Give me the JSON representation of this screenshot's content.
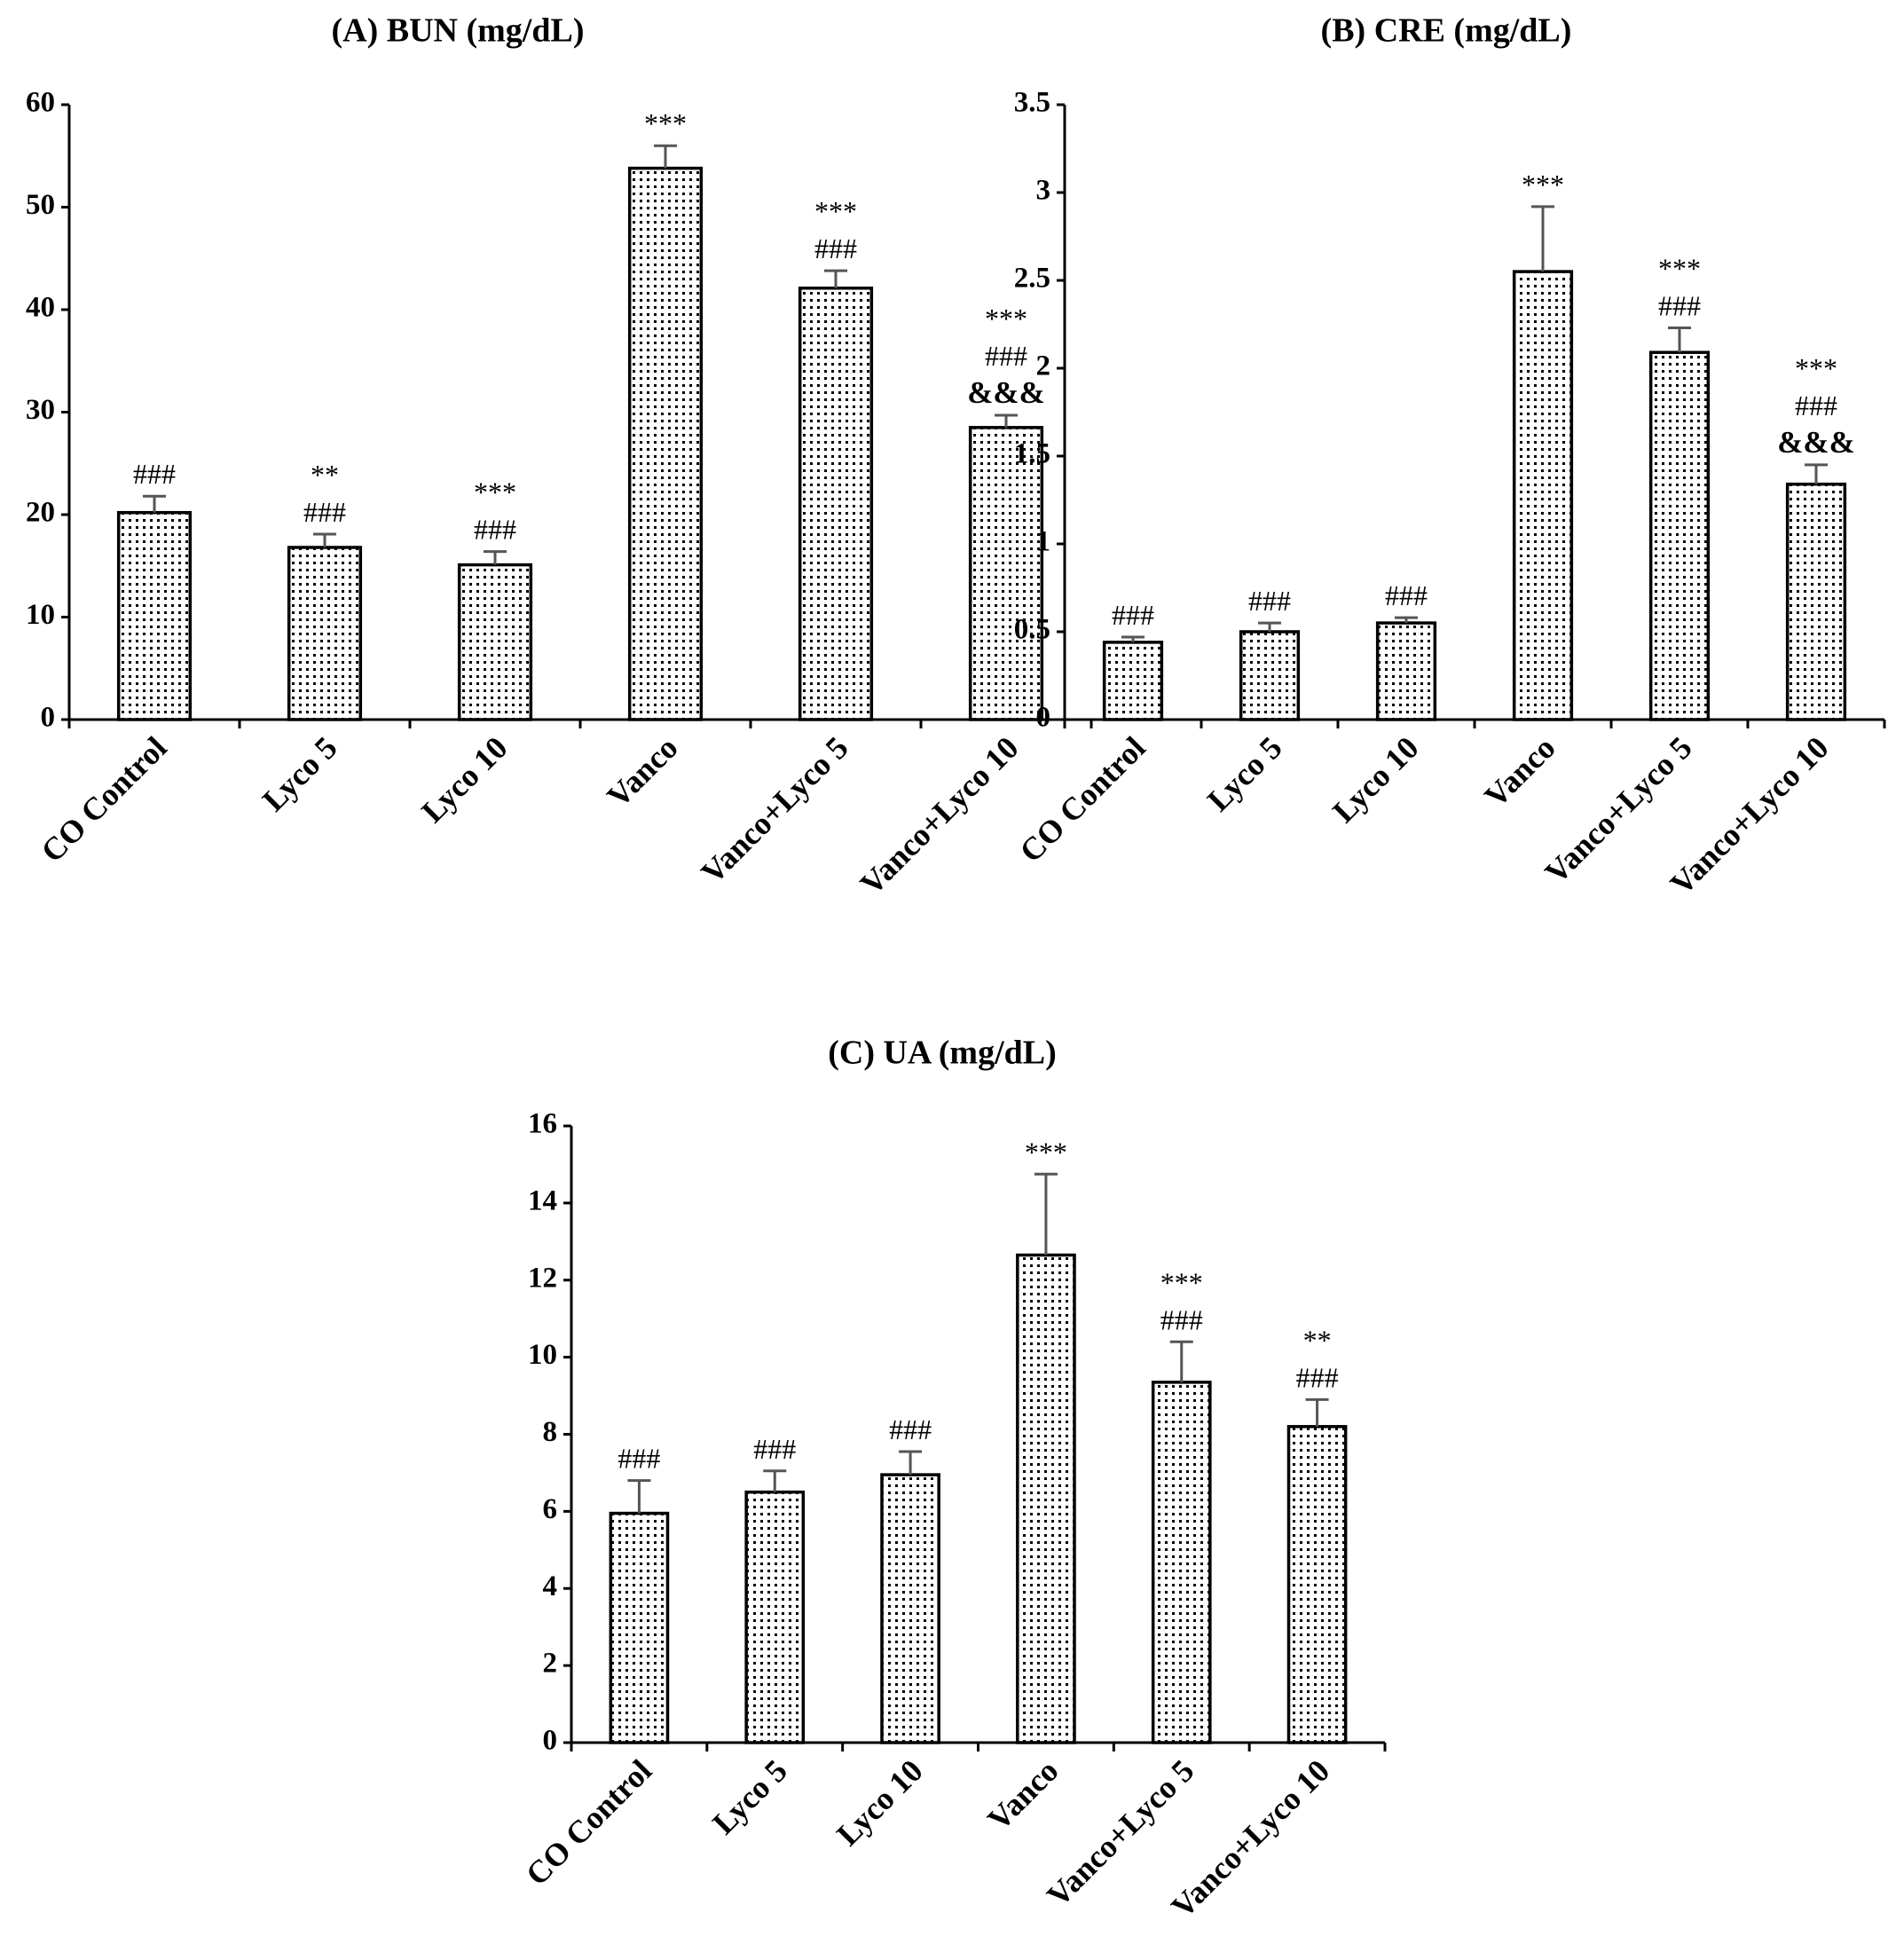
{
  "chart_data": [
    {
      "type": "bar",
      "title": "(A) BUN (mg/dL)",
      "categories": [
        "CO Control",
        "Lyco 5",
        "Lyco 10",
        "Vanco",
        "Vanco+Lyco 5",
        "Vanco+Lyco 10"
      ],
      "values": [
        20.2,
        16.8,
        15.1,
        53.8,
        42.1,
        28.5
      ],
      "errors": [
        1.6,
        1.3,
        1.3,
        2.2,
        1.7,
        1.2
      ],
      "significance": [
        [
          "###"
        ],
        [
          "**",
          "###"
        ],
        [
          "***",
          "###"
        ],
        [
          "***"
        ],
        [
          "***",
          "###"
        ],
        [
          "***",
          "###",
          "&&&"
        ]
      ],
      "ylim": [
        0,
        60
      ],
      "yticks": [
        "0",
        "10",
        "20",
        "30",
        "40",
        "50",
        "60"
      ],
      "xlabel": "",
      "ylabel": "",
      "grid": false,
      "legend": "none"
    },
    {
      "type": "bar",
      "title": "(B) CRE (mg/dL)",
      "categories": [
        "CO Control",
        "Lyco 5",
        "Lyco 10",
        "Vanco",
        "Vanco+Lyco 5",
        "Vanco+Lyco 10"
      ],
      "values": [
        0.44,
        0.5,
        0.55,
        2.55,
        2.09,
        1.34
      ],
      "errors": [
        0.03,
        0.05,
        0.03,
        0.37,
        0.14,
        0.11
      ],
      "significance": [
        [
          "###"
        ],
        [
          "###"
        ],
        [
          "###"
        ],
        [
          "***"
        ],
        [
          "***",
          "###"
        ],
        [
          "***",
          "###",
          "&&&"
        ]
      ],
      "ylim": [
        0,
        3.5
      ],
      "yticks": [
        "0",
        "0.5",
        "1",
        "1.5",
        "2",
        "2.5",
        "3",
        "3.5"
      ],
      "xlabel": "",
      "ylabel": "",
      "grid": false,
      "legend": "none"
    },
    {
      "type": "bar",
      "title": "(C) UA (mg/dL)",
      "categories": [
        "CO Control",
        "Lyco 5",
        "Lyco 10",
        "Vanco",
        "Vanco+Lyco 5",
        "Vanco+Lyco 10"
      ],
      "values": [
        5.95,
        6.5,
        6.95,
        12.65,
        9.35,
        8.2
      ],
      "errors": [
        0.85,
        0.55,
        0.6,
        2.1,
        1.05,
        0.7
      ],
      "significance": [
        [
          "###"
        ],
        [
          "###"
        ],
        [
          "###"
        ],
        [
          "***"
        ],
        [
          "***",
          "###"
        ],
        [
          "**",
          "###"
        ]
      ],
      "ylim": [
        0,
        16
      ],
      "yticks": [
        "0",
        "2",
        "4",
        "6",
        "8",
        "10",
        "12",
        "14",
        "16"
      ],
      "xlabel": "",
      "ylabel": "",
      "grid": false,
      "legend": "none"
    }
  ]
}
